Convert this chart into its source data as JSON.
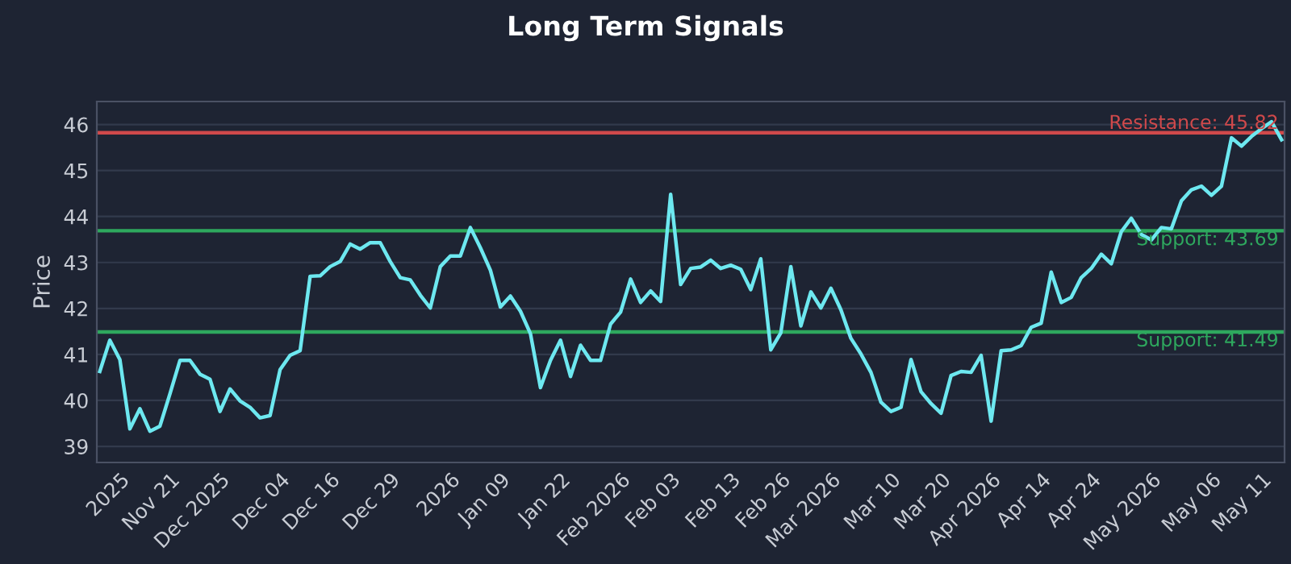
{
  "chart_data": {
    "type": "line",
    "title": "Long Term Signals",
    "ylabel": "Price",
    "categories": [
      null,
      null,
      "2025",
      null,
      null,
      null,
      null,
      "Nov 21",
      null,
      null,
      null,
      null,
      "Dec 2025",
      null,
      null,
      null,
      null,
      null,
      "Dec 04",
      null,
      null,
      null,
      null,
      "Dec 16",
      null,
      null,
      null,
      null,
      null,
      "Dec 29",
      null,
      null,
      null,
      null,
      null,
      "2026",
      null,
      null,
      null,
      null,
      "Jan 09",
      null,
      null,
      null,
      null,
      null,
      "Jan 22",
      null,
      null,
      null,
      null,
      null,
      "Feb 2026",
      null,
      null,
      null,
      null,
      "Feb 03",
      null,
      null,
      null,
      null,
      null,
      "Feb 13",
      null,
      null,
      null,
      null,
      "Feb 26",
      null,
      null,
      null,
      null,
      "Mar 2026",
      null,
      null,
      null,
      null,
      null,
      "Mar 10",
      null,
      null,
      null,
      null,
      "Mar 20",
      null,
      null,
      null,
      null,
      "Apr 2026",
      null,
      null,
      null,
      null,
      "Apr 14",
      null,
      null,
      null,
      null,
      "Apr 24",
      null,
      null,
      null,
      null,
      null,
      "May 2026",
      null,
      null,
      null,
      null,
      null,
      "May 06",
      null,
      null,
      null,
      null,
      "May 11",
      null,
      null
    ],
    "ylim": [
      38.65,
      46.5
    ],
    "yticks": [
      39,
      40,
      41,
      42,
      43,
      44,
      45,
      46
    ],
    "grid": "y",
    "legend": false,
    "marker": "none",
    "line_style": "solid",
    "series": [
      {
        "color": "#6de8f0",
        "values": [
          40.63,
          41.31,
          40.89,
          39.38,
          39.82,
          39.33,
          39.44,
          40.14,
          40.87,
          40.87,
          40.57,
          40.46,
          39.76,
          40.25,
          39.99,
          39.85,
          39.62,
          39.67,
          40.67,
          40.98,
          41.08,
          42.7,
          42.71,
          42.91,
          43.02,
          43.4,
          43.29,
          43.43,
          43.43,
          43.02,
          42.67,
          42.62,
          42.29,
          42.01,
          42.91,
          43.14,
          43.14,
          43.76,
          43.32,
          42.83,
          42.03,
          42.27,
          41.94,
          41.45,
          40.28,
          40.87,
          41.31,
          40.52,
          41.2,
          40.87,
          40.87,
          41.66,
          41.92,
          42.64,
          42.13,
          42.38,
          42.15,
          44.48,
          42.52,
          42.87,
          42.9,
          43.05,
          42.87,
          42.94,
          42.85,
          42.41,
          43.08,
          41.1,
          41.47,
          42.91,
          41.62,
          42.36,
          42.01,
          42.44,
          41.97,
          41.35,
          41.01,
          40.61,
          39.96,
          39.76,
          39.85,
          40.89,
          40.19,
          39.93,
          39.72,
          40.54,
          40.63,
          40.61,
          40.98,
          39.55,
          41.08,
          41.1,
          41.19,
          41.59,
          41.68,
          42.79,
          42.13,
          42.24,
          42.67,
          42.87,
          43.18,
          42.97,
          43.67,
          43.96,
          43.61,
          43.49,
          43.76,
          43.73,
          44.34,
          44.58,
          44.66,
          44.46,
          44.66,
          45.71,
          45.53,
          45.74,
          45.91,
          46.06,
          45.67
        ]
      }
    ],
    "ref_lines": [
      {
        "axis": "y",
        "value": 45.82,
        "label": "Resistance: 45.82",
        "color": "#d0494b"
      },
      {
        "axis": "y",
        "value": 43.69,
        "label": "Support: 43.69",
        "color": "#2ea85e"
      },
      {
        "axis": "y",
        "value": 41.49,
        "label": "Support: 41.49",
        "color": "#2ea85e"
      }
    ]
  }
}
